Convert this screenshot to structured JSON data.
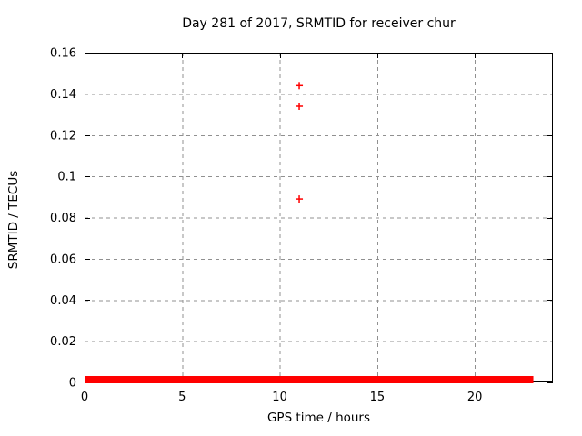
{
  "window": {
    "background": "#ffffff"
  },
  "chart_data": {
    "type": "scatter",
    "title": "Day 281 of 2017, SRMTID for receiver chur",
    "xlabel": "GPS time / hours",
    "ylabel": "SRMTID / TECUs",
    "xlim": [
      0,
      24
    ],
    "ylim": [
      0,
      0.16
    ],
    "x_ticks": [
      {
        "value": 0,
        "label": "0"
      },
      {
        "value": 5,
        "label": "5"
      },
      {
        "value": 10,
        "label": "10"
      },
      {
        "value": 15,
        "label": "15"
      },
      {
        "value": 20,
        "label": "20"
      }
    ],
    "y_ticks": [
      {
        "value": 0,
        "label": "0"
      },
      {
        "value": 0.02,
        "label": "0.02"
      },
      {
        "value": 0.04,
        "label": "0.04"
      },
      {
        "value": 0.06,
        "label": "0.06"
      },
      {
        "value": 0.08,
        "label": "0.08"
      },
      {
        "value": 0.1,
        "label": "0.1"
      },
      {
        "value": 0.12,
        "label": "0.12"
      },
      {
        "value": 0.14,
        "label": "0.14"
      },
      {
        "value": 0.16,
        "label": "0.16"
      }
    ],
    "grid": true,
    "legend": "none",
    "series": [
      {
        "name": "SRMTID",
        "marker": "plus",
        "color": "#ff0000",
        "outlier_points": [
          {
            "x": 11,
            "y": 0.144
          },
          {
            "x": 11,
            "y": 0.134
          },
          {
            "x": 11,
            "y": 0.089
          }
        ],
        "zero_band": {
          "x_start": 0,
          "x_end": 23,
          "y": 0
        }
      }
    ],
    "colors": {
      "marker": "#ff0000",
      "grid": "#909090",
      "axis": "#000000",
      "text": "#000000"
    }
  }
}
